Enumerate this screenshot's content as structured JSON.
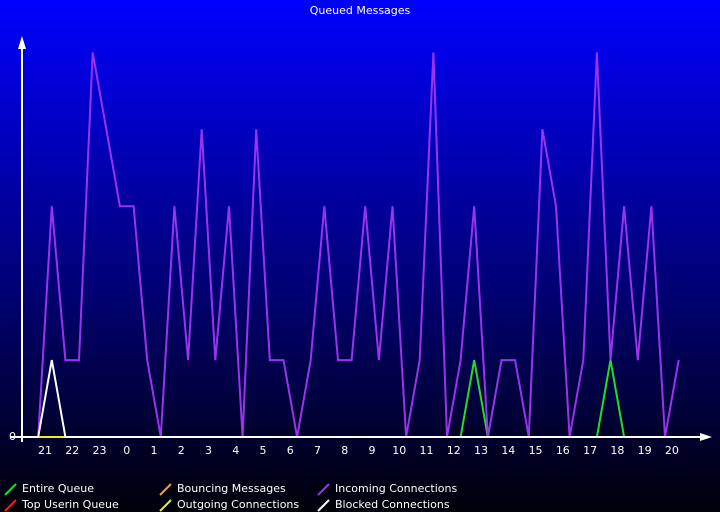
{
  "chart_data": {
    "type": "line",
    "title": "Queued Messages",
    "x": [
      -0.25,
      0.25,
      0.75,
      1.25,
      1.75,
      2.25,
      2.75,
      3.25,
      3.75,
      4.25,
      4.75,
      5.25,
      5.75,
      6.25,
      6.75,
      7.25,
      7.75,
      8.25,
      8.75,
      9.25,
      9.75,
      10.25,
      10.75,
      11.25,
      11.75,
      12.25,
      12.75,
      13.25,
      13.75,
      14.25,
      14.75,
      15.25,
      15.75,
      16.25,
      16.75,
      17.25,
      17.75,
      18.25,
      18.75,
      19.25,
      19.75,
      20.25,
      20.75,
      21.25,
      21.75,
      22.25,
      22.75,
      23.25
    ],
    "series": [
      {
        "name": "Entire Queue",
        "color": "#22dd22",
        "values": [
          0,
          0,
          0,
          0,
          0,
          0,
          0,
          0,
          0,
          0,
          0,
          0,
          0,
          0,
          0,
          0,
          0,
          0,
          0,
          0,
          0,
          0,
          0,
          0,
          0,
          0,
          0,
          0,
          0,
          0,
          0,
          0,
          1,
          0,
          0,
          0,
          0,
          0,
          0,
          0,
          0,
          0,
          1,
          0,
          0,
          0,
          0,
          0
        ]
      },
      {
        "name": "Top Userin Queue",
        "color": "#ee2222",
        "values": [
          0,
          0,
          0,
          0,
          0,
          0,
          0,
          0,
          0,
          0,
          0,
          0,
          0,
          0,
          0,
          0,
          0,
          0,
          0,
          0,
          0,
          0,
          0,
          0,
          0,
          0,
          0,
          0,
          0,
          0,
          0,
          0,
          0,
          0,
          0,
          0,
          0,
          0,
          0,
          0,
          0,
          0,
          0,
          0,
          0,
          0,
          0,
          0
        ]
      },
      {
        "name": "Bouncing Messages",
        "color": "#ff9922",
        "values": [
          0,
          0,
          0,
          0,
          0,
          0,
          0,
          0,
          0,
          0,
          0,
          0,
          0,
          0,
          0,
          0,
          0,
          0,
          0,
          0,
          0,
          0,
          0,
          0,
          0,
          0,
          0,
          0,
          0,
          0,
          0,
          0,
          0,
          0,
          0,
          0,
          0,
          0,
          0,
          0,
          0,
          0,
          0,
          0,
          0,
          0,
          0,
          0
        ]
      },
      {
        "name": "Outgoing Connections",
        "color": "#eeee22",
        "values": [
          0,
          0,
          0,
          0,
          0,
          0,
          0,
          0,
          0,
          0,
          0,
          0,
          0,
          0,
          0,
          0,
          0,
          0,
          0,
          0,
          0,
          0,
          0,
          0,
          0,
          0,
          0,
          0,
          0,
          0,
          0,
          0,
          0,
          0,
          0,
          0,
          0,
          0,
          0,
          0,
          0,
          0,
          0,
          0,
          0,
          0,
          0,
          0
        ]
      },
      {
        "name": "Incoming Connections",
        "color": "#9933ee",
        "values": [
          0,
          3,
          1,
          1,
          5,
          4,
          3,
          3,
          1,
          0,
          3,
          1,
          4,
          1,
          3,
          0,
          4,
          1,
          1,
          0,
          1,
          3,
          1,
          1,
          3,
          1,
          3,
          0,
          1,
          5,
          0,
          1,
          3,
          0,
          1,
          1,
          0,
          4,
          3,
          0,
          1,
          5,
          1,
          3,
          1,
          3,
          0,
          1
        ]
      },
      {
        "name": "Blocked Connections",
        "color": "#ffffff",
        "values": [
          0,
          1,
          0,
          0,
          0,
          0,
          0,
          0,
          0,
          0,
          0,
          0,
          0,
          0,
          0,
          0,
          0,
          0,
          0,
          0,
          0,
          0,
          0,
          0,
          0,
          0,
          0,
          0,
          0,
          0,
          0,
          0,
          0,
          0,
          0,
          0,
          0,
          0,
          0,
          0,
          0,
          0,
          0,
          0,
          0,
          0,
          0,
          0
        ]
      }
    ],
    "xlim": [
      -1.1,
      24.4
    ],
    "xticks": [
      {
        "value": 0,
        "label": "21"
      },
      {
        "value": 1,
        "label": "22"
      },
      {
        "value": 2,
        "label": "23"
      },
      {
        "value": 3,
        "label": "0"
      },
      {
        "value": 4,
        "label": "1"
      },
      {
        "value": 5,
        "label": "2"
      },
      {
        "value": 6,
        "label": "3"
      },
      {
        "value": 7,
        "label": "4"
      },
      {
        "value": 8,
        "label": "5"
      },
      {
        "value": 9,
        "label": "6"
      },
      {
        "value": 10,
        "label": "7"
      },
      {
        "value": 11,
        "label": "8"
      },
      {
        "value": 12,
        "label": "9"
      },
      {
        "value": 13,
        "label": "10"
      },
      {
        "value": 14,
        "label": "11"
      },
      {
        "value": 15,
        "label": "12"
      },
      {
        "value": 16,
        "label": "13"
      },
      {
        "value": 17,
        "label": "14"
      },
      {
        "value": 18,
        "label": "15"
      },
      {
        "value": 19,
        "label": "16"
      },
      {
        "value": 20,
        "label": "17"
      },
      {
        "value": 21,
        "label": "18"
      },
      {
        "value": 22,
        "label": "19"
      },
      {
        "value": 23,
        "label": "20"
      }
    ],
    "ylim": [
      0,
      5.2
    ],
    "yticks": [
      0
    ]
  }
}
